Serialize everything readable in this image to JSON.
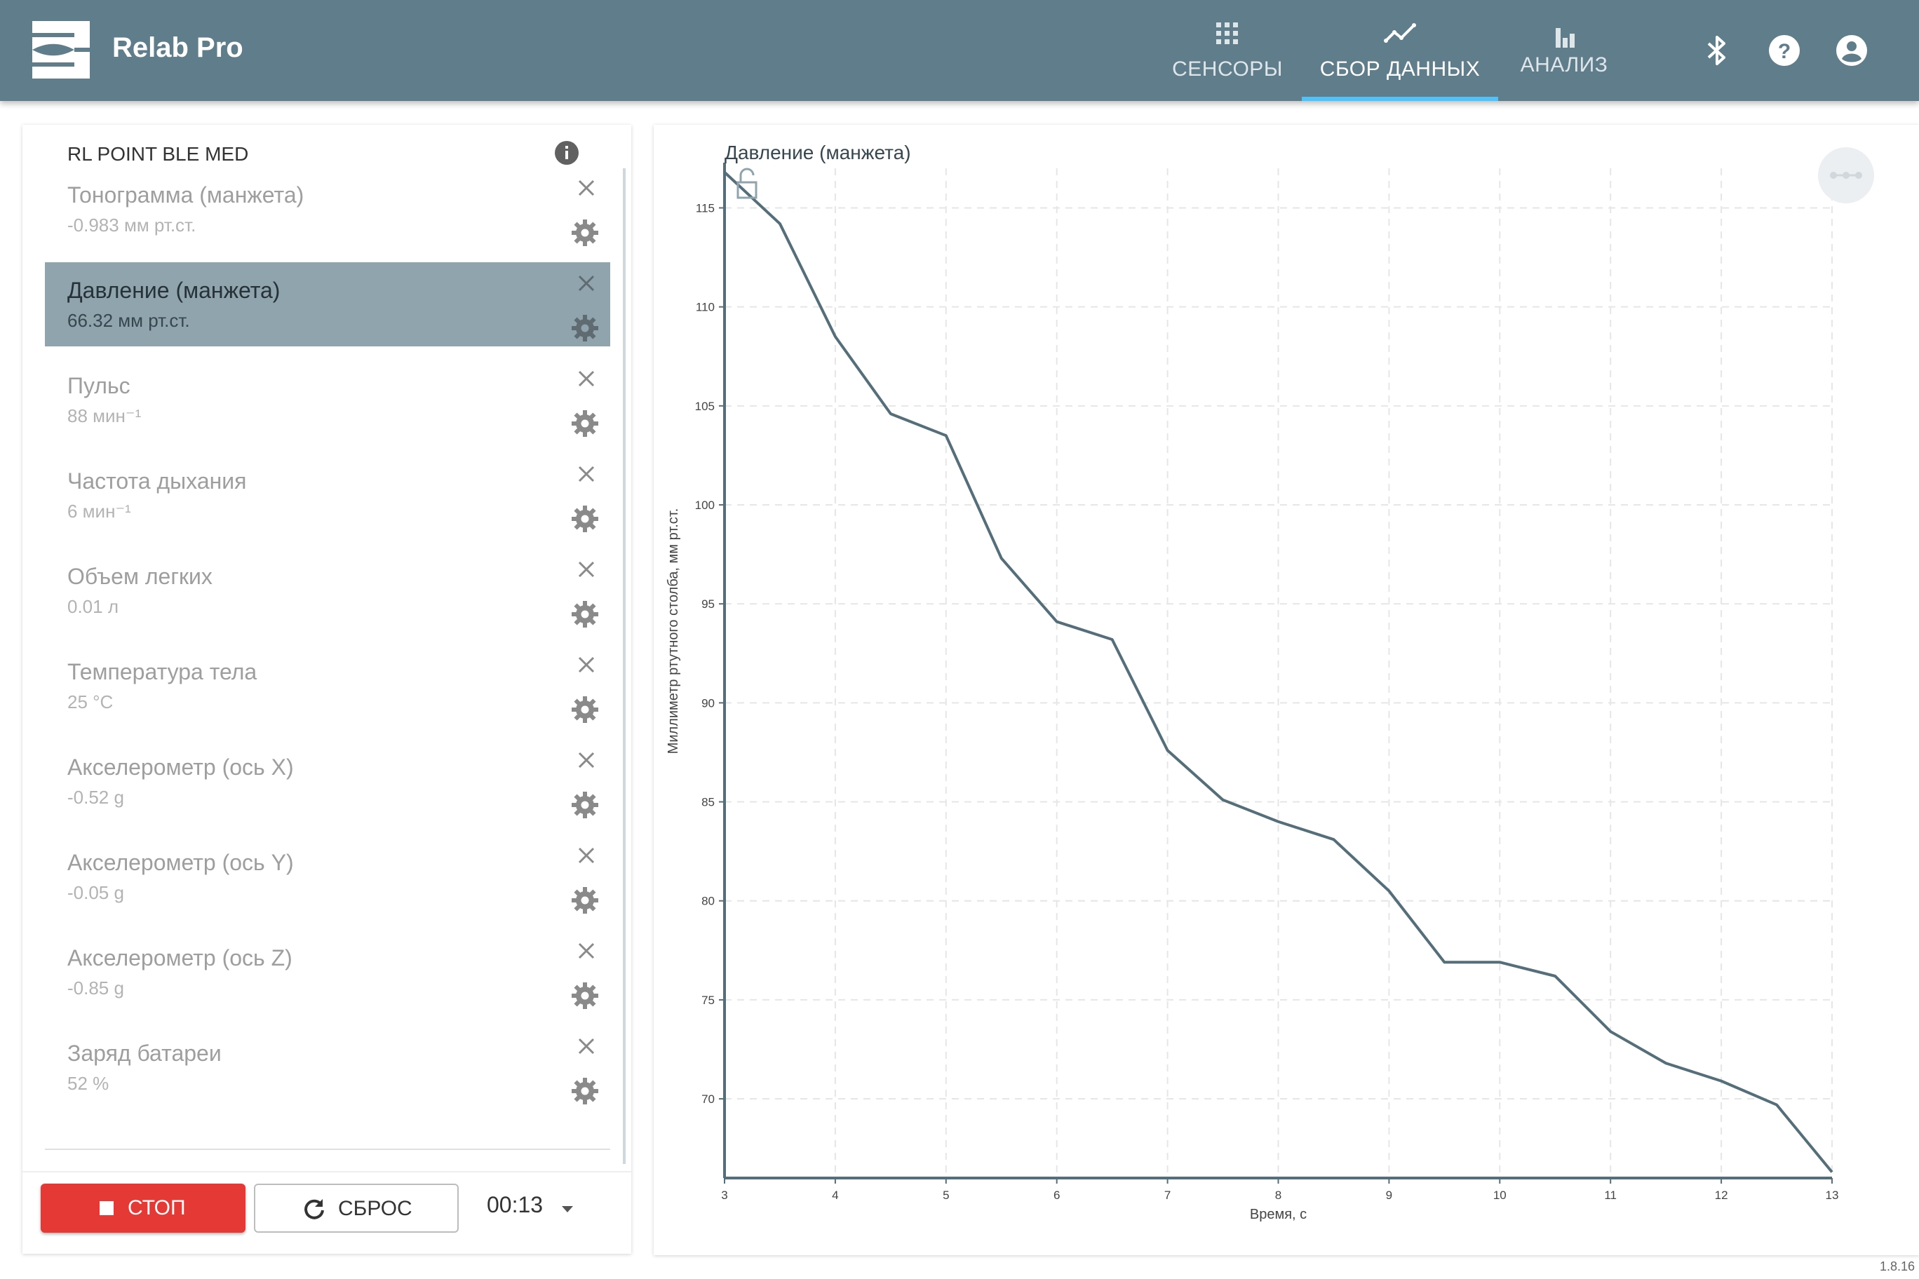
{
  "app": {
    "title": "Relab Pro",
    "version": "1.8.16"
  },
  "nav": {
    "tabs": [
      {
        "label": "СЕНСОРЫ",
        "icon": "grid-icon",
        "active": false
      },
      {
        "label": "СБОР ДАННЫХ",
        "icon": "trend-icon",
        "active": true
      },
      {
        "label": "АНАЛИЗ",
        "icon": "bar-chart-icon",
        "active": false
      }
    ],
    "icons": [
      "bluetooth-icon",
      "help-icon",
      "account-icon"
    ]
  },
  "colors": {
    "topbar": "#607d8b",
    "selected": "#90a4ae",
    "accent": "#4fc3f7",
    "stop": "#e53935",
    "line": "#546e7a"
  },
  "sidebar": {
    "device": "RL POINT BLE MED",
    "sensors": [
      {
        "name": "Тонограмма (манжета)",
        "value": "-0.983 мм рт.ст.",
        "selected": false
      },
      {
        "name": "Давление (манжета)",
        "value": "66.32 мм рт.ст.",
        "selected": true
      },
      {
        "name": "Пульс",
        "value": "88 мин⁻¹",
        "selected": false
      },
      {
        "name": "Частота дыхания",
        "value": "6 мин⁻¹",
        "selected": false
      },
      {
        "name": "Объем легких",
        "value": "0.01 л",
        "selected": false
      },
      {
        "name": "Температура тела",
        "value": "25 °C",
        "selected": false
      },
      {
        "name": "Акселерометр (ось X)",
        "value": "-0.52 g",
        "selected": false
      },
      {
        "name": "Акселерометр (ось Y)",
        "value": "-0.05 g",
        "selected": false
      },
      {
        "name": "Акселерометр (ось Z)",
        "value": "-0.85 g",
        "selected": false
      },
      {
        "name": "Заряд батареи",
        "value": "52 %",
        "selected": false
      }
    ]
  },
  "controls": {
    "stop_label": "СТОП",
    "reset_label": "СБРОС",
    "timer": "00:13"
  },
  "chart_data": {
    "type": "line",
    "title": "Давление (манжета)",
    "xlabel": "Время, с",
    "ylabel": "Миллиметр ртутного столба, мм рт.ст.",
    "xlim": [
      3,
      13
    ],
    "ylim": [
      66,
      117
    ],
    "xticks": [
      3,
      4,
      5,
      6,
      7,
      8,
      9,
      10,
      11,
      12,
      13
    ],
    "yticks": [
      70,
      75,
      80,
      85,
      90,
      95,
      100,
      105,
      110,
      115
    ],
    "grid": true,
    "series": [
      {
        "x": [
          3,
          3.5,
          4,
          4.5,
          5,
          5.5,
          6,
          6.5,
          7,
          7.5,
          8,
          8.5,
          9,
          9.5,
          10,
          10.5,
          11,
          11.5,
          12,
          12.5,
          13
        ],
        "y": [
          116.8,
          114.2,
          108.5,
          104.6,
          103.5,
          97.3,
          94.1,
          93.2,
          87.6,
          85.1,
          84.0,
          83.1,
          80.5,
          76.9,
          76.9,
          76.2,
          73.4,
          71.8,
          70.9,
          69.7,
          66.3
        ]
      }
    ]
  }
}
